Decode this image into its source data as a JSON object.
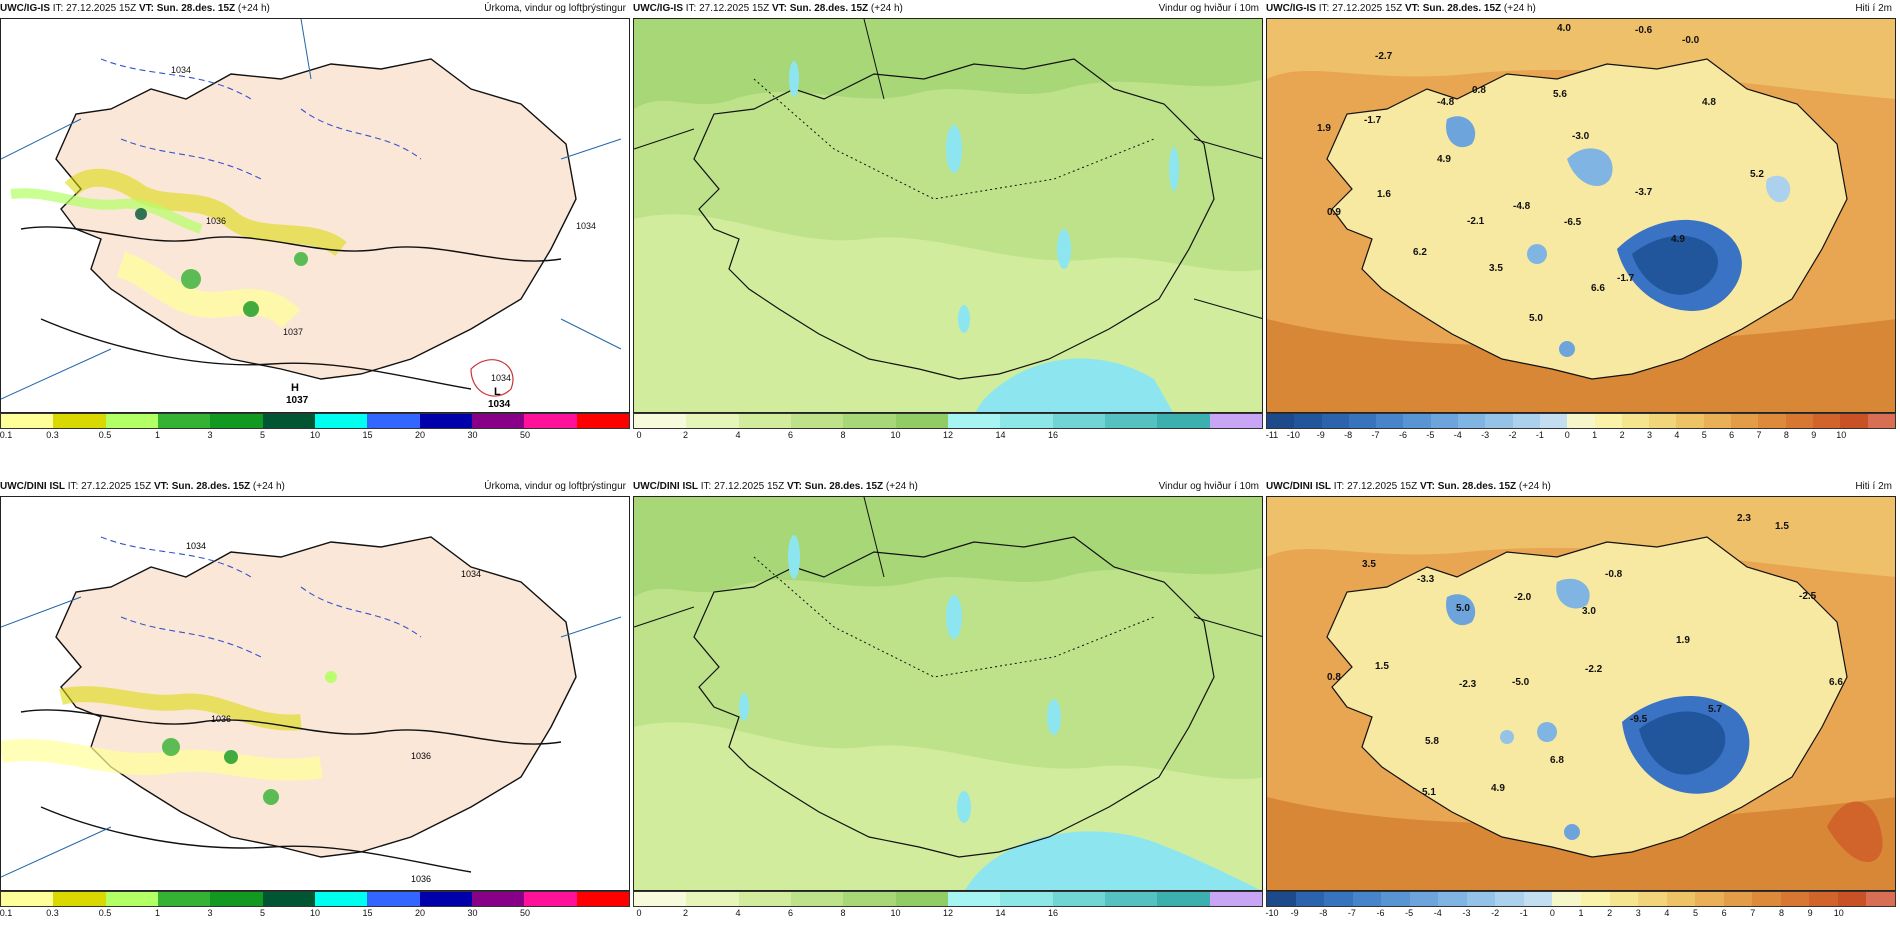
{
  "rows": [
    {
      "model": "UWC/IG-IS",
      "it_label": "IT:",
      "it_value": "27.12.2025 15Z",
      "vt_label": "VT:",
      "vt_value": "Sun. 28.des. 15Z",
      "lead": "(+24 h)",
      "temp_labels": [
        "-2.7",
        "4.0",
        "-0.6",
        "-0.0",
        "-4.8",
        "0.8",
        "5.6",
        "4.8",
        "1.9",
        "-1.7",
        "-3.0",
        "4.9",
        "5.2",
        "1.6",
        "-3.7",
        "0.9",
        "-2.1",
        "-4.8",
        "-6.5",
        "4.9",
        "6.2",
        "3.5",
        "-1.7",
        "6.6",
        "5.0"
      ],
      "pressure_labels": [
        "1036",
        "1037",
        "1034",
        "1034",
        "1034"
      ],
      "pressure_centres": [
        {
          "letter": "H",
          "value": "1037"
        },
        {
          "letter": "L",
          "value": "1034"
        }
      ]
    },
    {
      "model": "UWC/DINI ISL",
      "it_label": "IT:",
      "it_value": "27.12.2025 15Z",
      "vt_label": "VT:",
      "vt_value": "Sun. 28.des. 15Z",
      "lead": "(+24 h)",
      "temp_labels": [
        "2.3",
        "1.5",
        "3.5",
        "-3.3",
        "-0.8",
        "5.0",
        "-2.0",
        "3.0",
        "-2.5",
        "1.9",
        "1.5",
        "0.8",
        "-2.2",
        "6.6",
        "-2.3",
        "-5.0",
        "-9.5",
        "5.7",
        "5.8",
        "6.8",
        "5.1",
        "4.9"
      ],
      "pressure_labels": [
        "1034",
        "1034",
        "1036",
        "1036",
        "1036"
      ],
      "pressure_centres": []
    }
  ],
  "fields": {
    "precip": "Úrkoma, vindur og loftþrýstingur",
    "wind": "Vindur og hviður í 10m",
    "temp": "Hiti í 2m"
  },
  "colorbars": {
    "precip": {
      "ticks": [
        "0.1",
        "0.3",
        "0.5",
        "1",
        "3",
        "5",
        "10",
        "15",
        "20",
        "30",
        "50"
      ],
      "colors": [
        "#ffff99",
        "#d9d900",
        "#b3ff66",
        "#33b233",
        "#119922",
        "#005533",
        "#00ffee",
        "#3366ff",
        "#0000aa",
        "#880088",
        "#ff1199",
        "#ff0000"
      ]
    },
    "wind": {
      "ticks": [
        "0",
        "2",
        "4",
        "6",
        "8",
        "10",
        "12",
        "14",
        "16"
      ],
      "colors": [
        "#f7fbdb",
        "#e6f5b8",
        "#d0ec9c",
        "#bde289",
        "#a7d776",
        "#92cc64",
        "#a6f5f2",
        "#8ce7e6",
        "#70d5d4",
        "#55c2c1",
        "#3cb0ae",
        "#c9a6f5"
      ]
    },
    "temp_top": {
      "ticks": [
        "-11",
        "-10",
        "-9",
        "-8",
        "-7",
        "-6",
        "-5",
        "-4",
        "-3",
        "-2",
        "-1",
        "0",
        "1",
        "2",
        "3",
        "4",
        "5",
        "6",
        "7",
        "8",
        "9",
        "10"
      ],
      "colors": [
        "#1d4a8a",
        "#21569c",
        "#2b64ad",
        "#3873bd",
        "#4784ca",
        "#5994d3",
        "#6ca4db",
        "#80b4e2",
        "#95c3e8",
        "#abd1ed",
        "#c2def0",
        "#f5f6c9",
        "#f9f2a8",
        "#f6e58f",
        "#f2d57a",
        "#eec366",
        "#eab055",
        "#e49d47",
        "#de8a3b",
        "#d77732",
        "#d0642b",
        "#c95126",
        "#d86f55"
      ]
    },
    "temp_bottom": {
      "ticks": [
        "-10",
        "-9",
        "-8",
        "-7",
        "-6",
        "-5",
        "-4",
        "-3",
        "-2",
        "-1",
        "0",
        "1",
        "2",
        "3",
        "4",
        "5",
        "6",
        "7",
        "8",
        "9",
        "10"
      ],
      "colors": [
        "#1d4a8a",
        "#2b64ad",
        "#3873bd",
        "#4784ca",
        "#5994d3",
        "#6ca4db",
        "#80b4e2",
        "#95c3e8",
        "#abd1ed",
        "#c2def0",
        "#f5f6c9",
        "#f9f2a8",
        "#f6e58f",
        "#f2d57a",
        "#eec366",
        "#eab055",
        "#e49d47",
        "#de8a3b",
        "#d77732",
        "#d0642b",
        "#c95126",
        "#d86f55"
      ]
    }
  },
  "colors": {
    "precip_bg": "#ffffff",
    "land": "#fbe7d8",
    "sea_warm": "#e39a45",
    "temp_cold": "#3a72c4",
    "wind_green": "#a9d97a",
    "ice_cyan": "#8de6ef"
  }
}
